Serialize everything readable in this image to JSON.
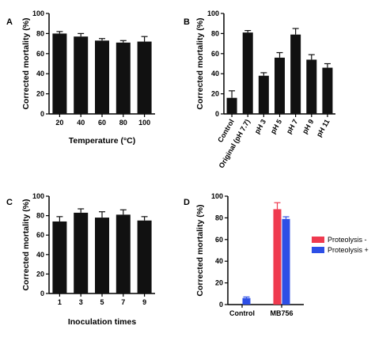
{
  "chart_data": [
    {
      "panel": "A",
      "type": "bar",
      "xlabel": "Temperature (°C)",
      "ylabel": "Corrected mortality (%)",
      "ylim": [
        0,
        100
      ],
      "yticks": [
        0,
        20,
        40,
        60,
        80,
        100
      ],
      "categories": [
        "20",
        "40",
        "60",
        "80",
        "100"
      ],
      "series": [
        {
          "values": [
            80,
            77,
            73,
            71,
            72
          ],
          "errors": [
            2,
            3,
            2,
            2,
            5
          ]
        }
      ],
      "colors": [
        "#111111"
      ]
    },
    {
      "panel": "B",
      "type": "bar",
      "xlabel": "",
      "ylabel": "Corrected mortality (%)",
      "ylim": [
        0,
        100
      ],
      "yticks": [
        0,
        20,
        40,
        60,
        80,
        100
      ],
      "categories": [
        "Control",
        "Original (pH 7.7)",
        "pH 3",
        "pH 5",
        "pH 7",
        "pH 9",
        "pH 11"
      ],
      "series": [
        {
          "values": [
            16,
            81,
            38,
            56,
            79,
            54,
            46
          ],
          "errors": [
            7,
            2,
            3,
            5,
            6,
            5,
            4
          ]
        }
      ],
      "colors": [
        "#111111"
      ]
    },
    {
      "panel": "C",
      "type": "bar",
      "xlabel": "Inoculation times",
      "ylabel": "Corrected mortality (%)",
      "ylim": [
        0,
        100
      ],
      "yticks": [
        0,
        20,
        40,
        60,
        80,
        100
      ],
      "categories": [
        "1",
        "3",
        "5",
        "7",
        "9"
      ],
      "series": [
        {
          "values": [
            74,
            83,
            78,
            81,
            75
          ],
          "errors": [
            5,
            4,
            6,
            5,
            4
          ]
        }
      ],
      "colors": [
        "#111111"
      ]
    },
    {
      "panel": "D",
      "type": "bar",
      "xlabel": "",
      "ylabel": "Corrected mortality (%)",
      "ylim": [
        0,
        100
      ],
      "yticks": [
        0,
        20,
        40,
        60,
        80,
        100
      ],
      "categories": [
        "Control",
        "MB756"
      ],
      "legend_position": "right",
      "series": [
        {
          "name": "Proteolysis -",
          "values": [
            0,
            88
          ],
          "errors": [
            0,
            6
          ]
        },
        {
          "name": "Proteolysis +",
          "values": [
            6,
            79
          ],
          "errors": [
            1,
            2
          ]
        }
      ],
      "colors": [
        "#ef3a4f",
        "#2d4fe6"
      ]
    }
  ]
}
